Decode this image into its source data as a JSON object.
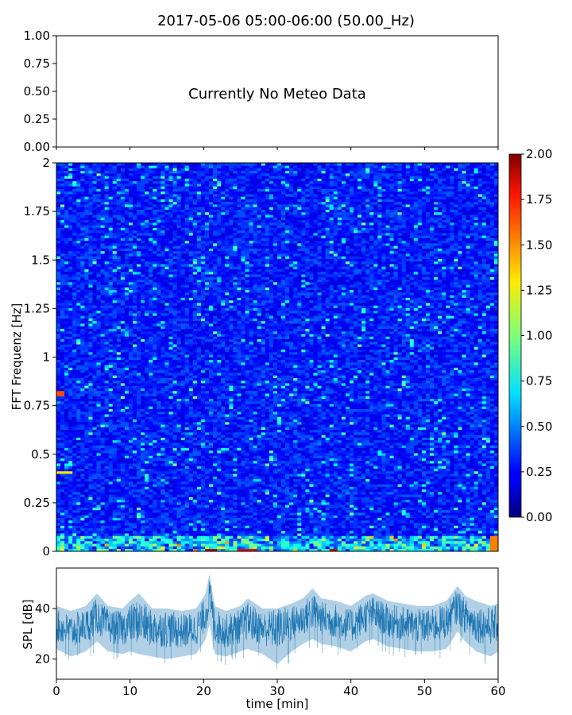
{
  "title": "2017-05-06 05:00-06:00 (50.00_Hz)",
  "chart_data": [
    {
      "type": "line",
      "name": "meteo",
      "annotation": "Currently No Meteo Data",
      "ylim": [
        0,
        1
      ],
      "yticks": [
        "0.00",
        "0.25",
        "0.50",
        "0.75",
        "1.00"
      ],
      "xlim": [
        0,
        60
      ]
    },
    {
      "type": "heatmap",
      "name": "spectrogram",
      "xlim": [
        0,
        60
      ],
      "ylim": [
        0,
        2
      ],
      "ylabel": "FFT Frequenz [Hz]",
      "yticks": [
        "0",
        "0.25",
        "0.5",
        "0.75",
        "1",
        "1.25",
        "1.5",
        "1.75",
        "2"
      ],
      "colormap": "jet",
      "colorbar": {
        "range": [
          0,
          2
        ],
        "ticks": [
          "0.00",
          "0.25",
          "0.50",
          "0.75",
          "1.00",
          "1.25",
          "1.50",
          "1.75",
          "2.00"
        ]
      },
      "typical_value": 0.3,
      "hot_spots": [
        {
          "x": [
            20,
            22
          ],
          "y": [
            0,
            0.01
          ],
          "value": 1.9
        },
        {
          "x": [
            24.5,
            27
          ],
          "y": [
            0,
            0.01
          ],
          "value": 1.8
        },
        {
          "x": [
            37,
            38
          ],
          "y": [
            0,
            0.01
          ],
          "value": 1.85
        },
        {
          "x": [
            0,
            1
          ],
          "y": [
            0.8,
            0.82
          ],
          "value": 1.6
        },
        {
          "x": [
            0,
            2
          ],
          "y": [
            0.4,
            0.41
          ],
          "value": 1.3
        },
        {
          "x": [
            59,
            60
          ],
          "y": [
            0,
            0.08
          ],
          "value": 1.5
        }
      ]
    },
    {
      "type": "area",
      "name": "spl",
      "xlabel": "time [min]",
      "ylabel": "SPL [dB]",
      "xlim": [
        0,
        60
      ],
      "ylim": [
        12,
        56
      ],
      "xticks": [
        "0",
        "10",
        "20",
        "30",
        "40",
        "50",
        "60"
      ],
      "yticks": [
        "20",
        "40"
      ],
      "color": "#1f77b4",
      "x": [
        0,
        2,
        4,
        5.5,
        7,
        9,
        10,
        11.2,
        13,
        15,
        17,
        19,
        20.3,
        20.8,
        21.5,
        23,
        25,
        26,
        28,
        30,
        32,
        33.5,
        34.8,
        36,
        38,
        40,
        42,
        43,
        45,
        47,
        49,
        51,
        53,
        54.5,
        55.5,
        57,
        59,
        60
      ],
      "center": [
        33,
        31,
        33,
        37,
        33,
        32,
        34,
        35,
        32,
        32,
        31,
        32,
        38,
        45,
        33,
        31,
        33,
        35,
        32,
        32,
        34,
        36,
        39,
        36,
        35,
        33,
        37,
        38,
        35,
        34,
        33,
        33,
        35,
        41,
        37,
        34,
        33,
        34
      ],
      "upper": [
        41,
        39,
        41,
        46,
        41,
        40,
        43,
        46,
        40,
        40,
        39,
        40,
        46,
        54,
        41,
        39,
        41,
        44,
        40,
        40,
        42,
        44,
        48,
        44,
        43,
        41,
        45,
        46,
        43,
        42,
        41,
        41,
        43,
        49,
        45,
        43,
        41,
        42
      ],
      "lower": [
        24,
        21,
        23,
        27,
        23,
        22,
        23,
        22,
        21,
        20,
        21,
        22,
        28,
        34,
        22,
        21,
        23,
        24,
        22,
        18,
        23,
        26,
        28,
        26,
        25,
        23,
        27,
        28,
        25,
        24,
        23,
        23,
        24,
        31,
        27,
        23,
        21,
        23
      ]
    }
  ]
}
